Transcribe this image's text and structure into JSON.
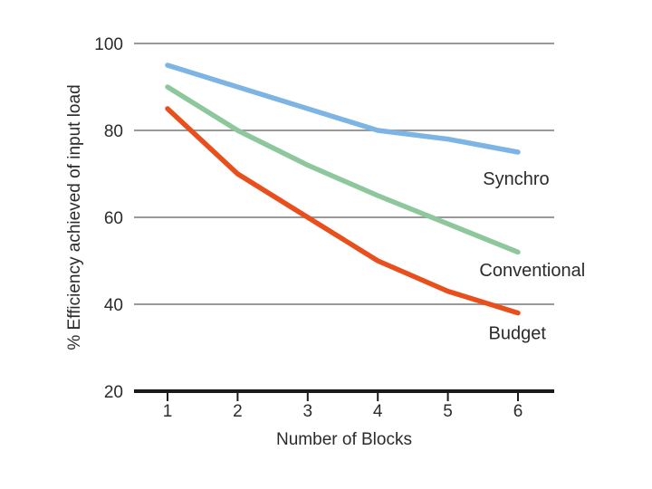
{
  "chart_data": {
    "type": "line",
    "title": "",
    "xlabel": "Number of Blocks",
    "ylabel": "% Efficiency achieved of input load",
    "x": [
      1,
      2,
      3,
      4,
      5,
      6
    ],
    "xticks": [
      "1",
      "2",
      "3",
      "4",
      "5",
      "6"
    ],
    "yticks": [
      "20",
      "40",
      "60",
      "80",
      "100"
    ],
    "ytick_values": [
      20,
      40,
      60,
      80,
      100
    ],
    "gridline_values": [
      40,
      60,
      80,
      100
    ],
    "ylim": [
      20,
      100
    ],
    "grid": "horizontal",
    "legend_position": "inline-right-of-lines",
    "colors": {
      "grid": "#999999",
      "axis": "#1a1a1a",
      "text": "#2b2b2b"
    },
    "series": [
      {
        "name": "Synchro",
        "color": "#7cb4e4",
        "values": [
          95,
          90,
          85,
          80,
          78,
          75
        ],
        "label_x": 5.5,
        "label_y": 67.5
      },
      {
        "name": "Conventional",
        "color": "#8dc79b",
        "values": [
          90,
          80,
          72,
          65,
          58.5,
          52
        ],
        "label_x": 5.45,
        "label_y": 46.5
      },
      {
        "name": "Budget",
        "color": "#e84f1d",
        "values": [
          85,
          70,
          60,
          50,
          43,
          38
        ],
        "label_x": 5.58,
        "label_y": 32
      }
    ]
  }
}
